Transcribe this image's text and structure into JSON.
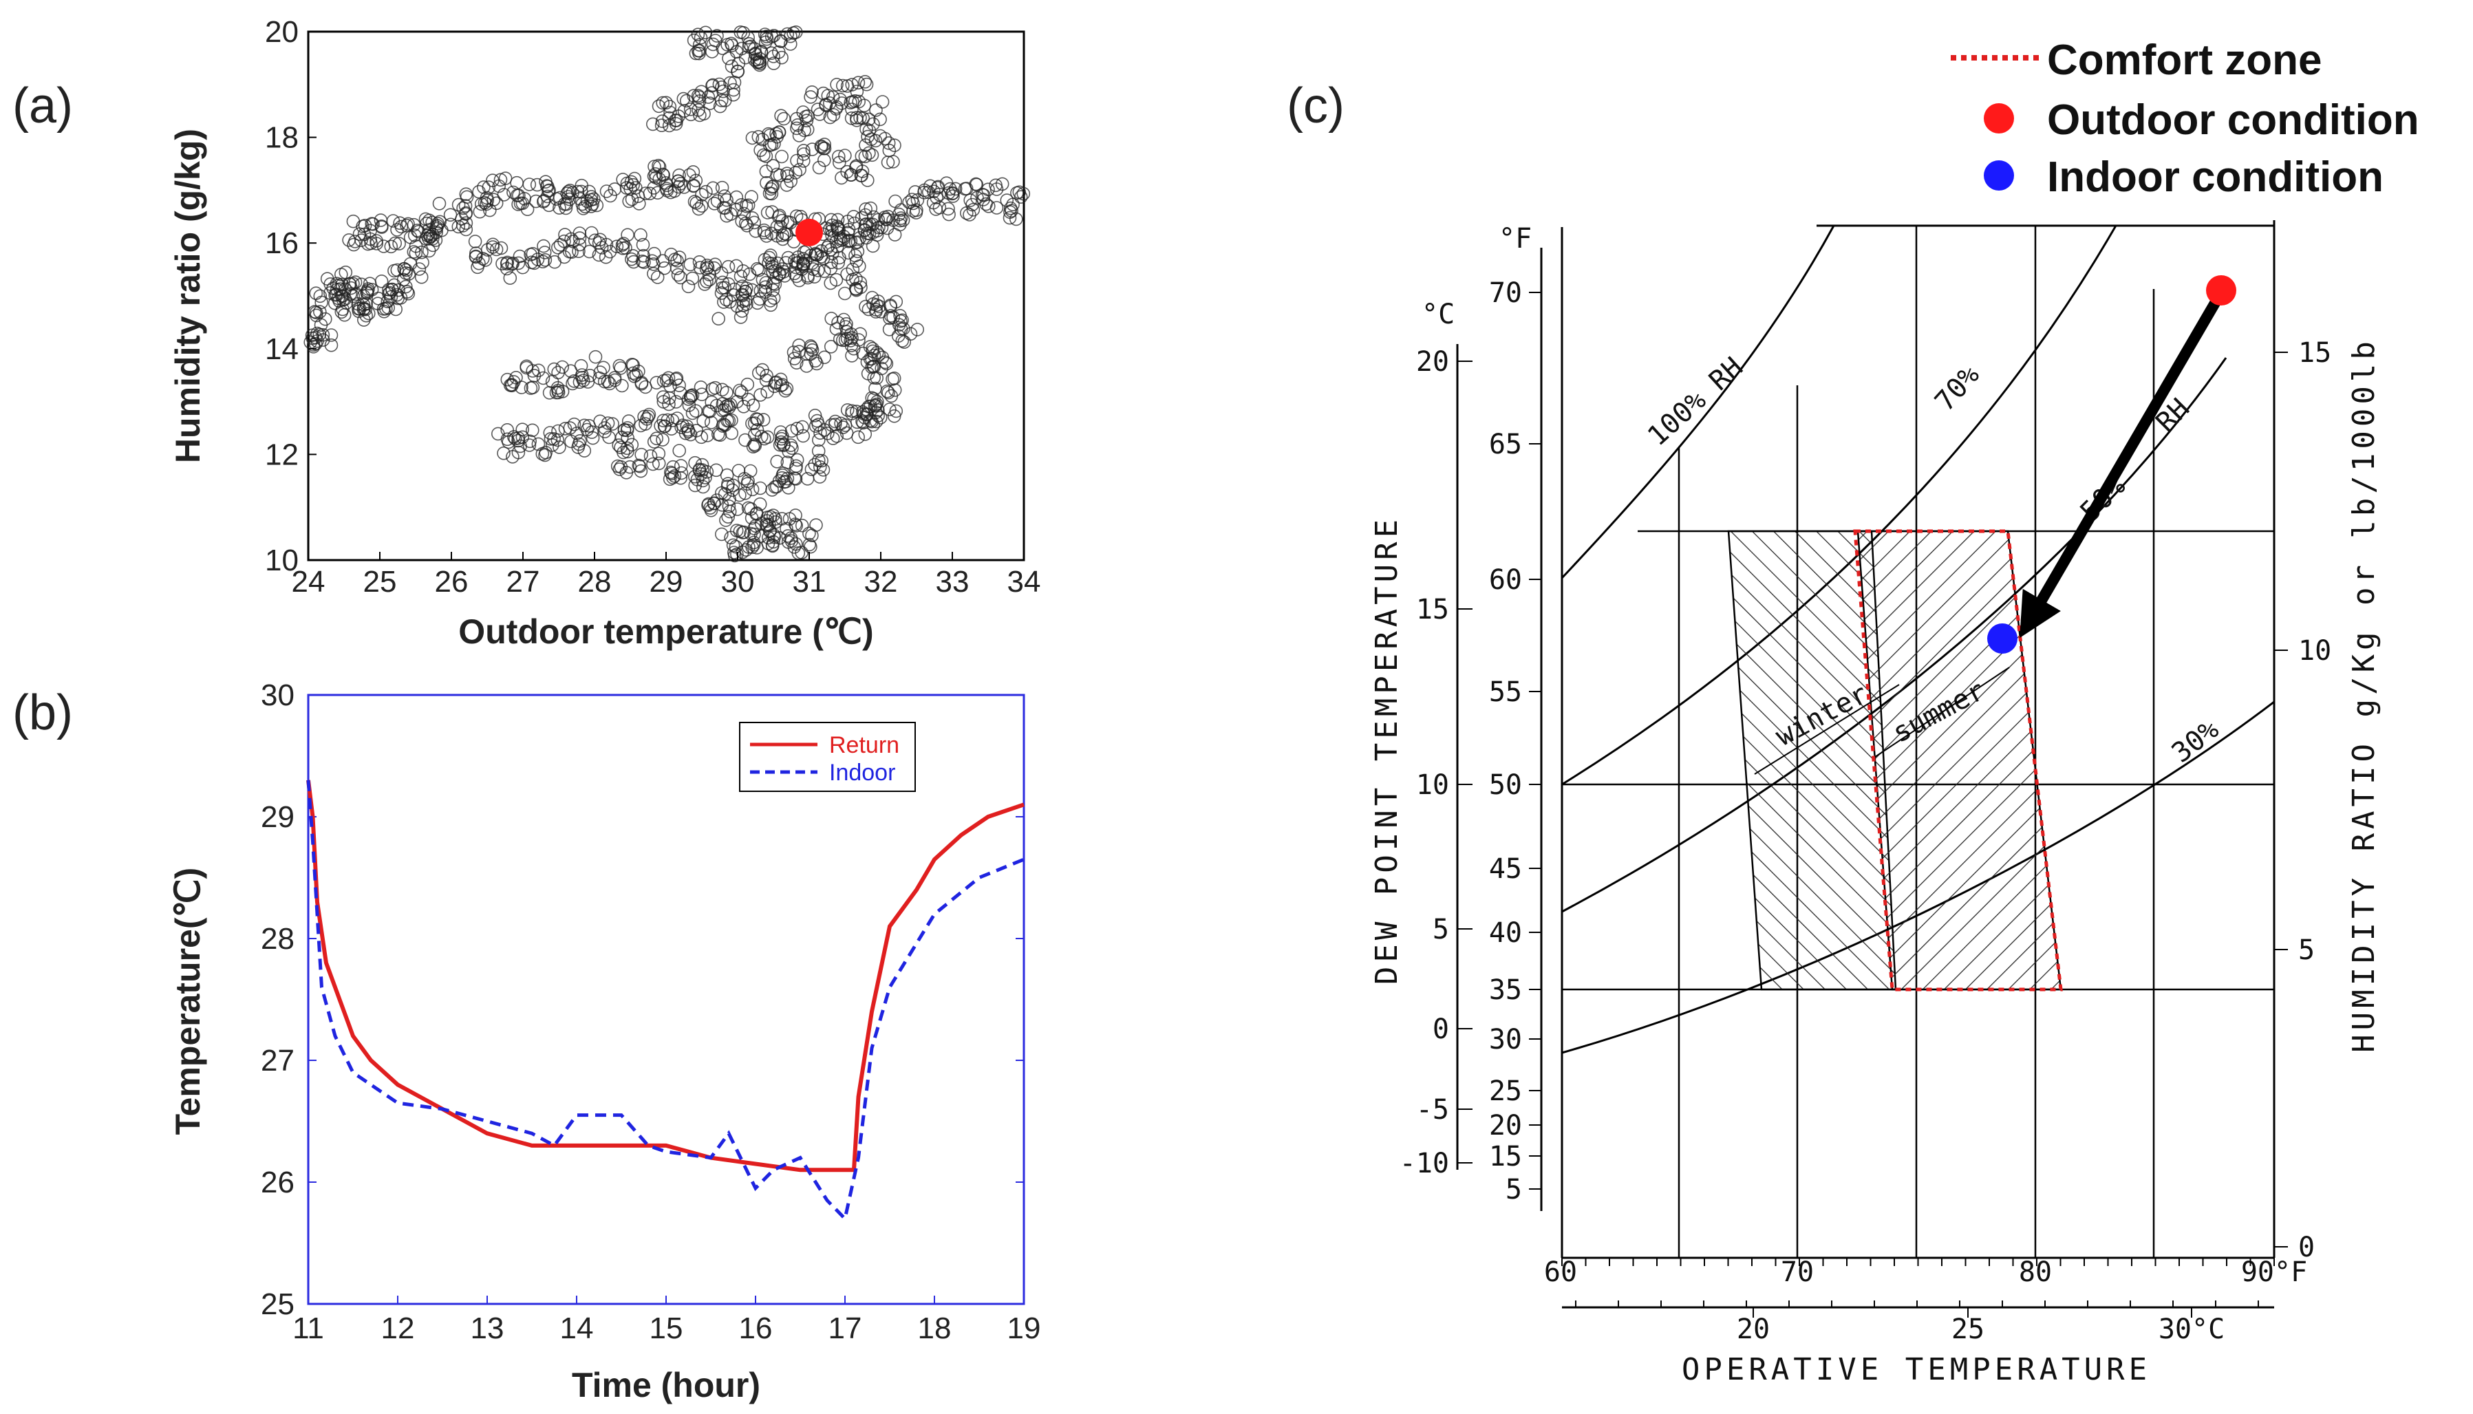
{
  "chart_data": [
    {
      "panel": "(a)",
      "type": "scatter",
      "xlabel": "Outdoor temperature (℃)",
      "ylabel": "Humidity ratio (g/kg)",
      "xlim": [
        24,
        34
      ],
      "ylim": [
        10,
        20
      ],
      "xticks": [
        24,
        25,
        26,
        27,
        28,
        29,
        30,
        31,
        32,
        33,
        34
      ],
      "yticks": [
        10,
        12,
        14,
        16,
        18,
        20
      ],
      "highlight": {
        "x": 31,
        "y": 16.2,
        "color": "#ff1a1a"
      },
      "clusters": [
        {
          "x": [
            25.6,
            25.4,
            25.2,
            25.0,
            24.8,
            24.6,
            24.4,
            24.3,
            24.1,
            24.0
          ],
          "y": [
            16.1,
            15.6,
            15.1,
            14.9,
            15.0,
            14.8,
            15.2,
            14.9,
            14.3,
            14.0
          ]
        },
        {
          "x": [
            24.7,
            25.1,
            25.6,
            26.0,
            26.4,
            26.8,
            27.2,
            27.6,
            28.0,
            28.4,
            28.8,
            29.2,
            29.6,
            30.0,
            30.4,
            30.8,
            31.2,
            31.6,
            32.0
          ],
          "y": [
            16.2,
            16.2,
            16.3,
            16.5,
            16.8,
            17.0,
            16.9,
            16.8,
            16.9,
            17.0,
            17.2,
            17.1,
            16.9,
            16.6,
            16.4,
            16.3,
            16.2,
            16.3,
            16.4
          ]
        },
        {
          "x": [
            26.5,
            27.0,
            27.5,
            28.0,
            28.5,
            29.0,
            29.5,
            30.0,
            30.5,
            31.0,
            31.5,
            32.0,
            32.3
          ],
          "y": [
            15.8,
            15.6,
            15.9,
            16.0,
            15.9,
            15.6,
            15.4,
            15.3,
            15.5,
            15.6,
            15.3,
            14.8,
            14.4
          ]
        },
        {
          "x": [
            30.4,
            30.8,
            31.2,
            31.6,
            31.8,
            32.0,
            31.6,
            31.0,
            30.6
          ],
          "y": [
            17.8,
            18.3,
            18.6,
            18.8,
            18.4,
            17.8,
            17.4,
            17.6,
            17.2
          ]
        },
        {
          "x": [
            29.6,
            30.0,
            30.4,
            30.6,
            30.1
          ],
          "y": [
            19.8,
            19.9,
            19.6,
            19.8,
            19.5
          ]
        },
        {
          "x": [
            29.0,
            29.4,
            29.8
          ],
          "y": [
            18.4,
            18.6,
            18.8
          ]
        },
        {
          "x": [
            29.9,
            30.3,
            30.7,
            31.1,
            31.5,
            31.9,
            32.3,
            32.7,
            33.1,
            33.5,
            33.9
          ],
          "y": [
            14.8,
            15.1,
            15.4,
            15.7,
            15.9,
            16.2,
            16.6,
            16.9,
            16.8,
            16.9,
            16.7
          ]
        },
        {
          "x": [
            27.0,
            27.5,
            28.0,
            28.5,
            29.0,
            29.5,
            30.0,
            30.5,
            31.0,
            31.5,
            31.8,
            32.0
          ],
          "y": [
            13.5,
            13.4,
            13.6,
            13.5,
            13.2,
            13.0,
            13.1,
            13.4,
            13.9,
            14.3,
            14.0,
            13.6
          ]
        },
        {
          "x": [
            26.8,
            27.3,
            27.8,
            28.3,
            28.8,
            29.3,
            29.8,
            30.3,
            30.8,
            31.3,
            31.8,
            32.0,
            31.6,
            31.0,
            30.5,
            30.0,
            29.5,
            29.0,
            28.5
          ],
          "y": [
            12.2,
            12.2,
            12.3,
            12.4,
            12.5,
            12.6,
            12.6,
            12.4,
            12.3,
            12.5,
            12.8,
            13.0,
            12.6,
            11.8,
            11.6,
            11.5,
            11.6,
            11.8,
            11.9
          ]
        },
        {
          "x": [
            29.8,
            30.2,
            30.6,
            30.9,
            30.4,
            30.0
          ],
          "y": [
            11.0,
            10.8,
            10.6,
            10.4,
            10.5,
            10.3
          ]
        }
      ]
    },
    {
      "panel": "(b)",
      "type": "line",
      "xlabel": "Time (hour)",
      "ylabel": "Temperature(℃)",
      "xlim": [
        11,
        19
      ],
      "ylim": [
        25,
        30
      ],
      "xticks": [
        11,
        12,
        13,
        14,
        15,
        16,
        17,
        18,
        19
      ],
      "yticks": [
        25,
        26,
        27,
        28,
        29,
        30
      ],
      "series": [
        {
          "name": "Return",
          "color": "#e01f1f",
          "dash": "solid",
          "x": [
            11.0,
            11.05,
            11.1,
            11.2,
            11.35,
            11.5,
            11.7,
            12.0,
            12.5,
            13.0,
            13.5,
            14.0,
            14.5,
            15.0,
            15.5,
            16.0,
            16.5,
            17.0,
            17.1,
            17.15,
            17.3,
            17.5,
            17.8,
            18.0,
            18.3,
            18.6,
            19.0
          ],
          "y": [
            29.3,
            29.0,
            28.3,
            27.8,
            27.5,
            27.2,
            27.0,
            26.8,
            26.6,
            26.4,
            26.3,
            26.3,
            26.3,
            26.3,
            26.2,
            26.15,
            26.1,
            26.1,
            26.1,
            26.7,
            27.4,
            28.1,
            28.4,
            28.65,
            28.85,
            29.0,
            29.1
          ]
        },
        {
          "name": "Indoor",
          "color": "#1f24e0",
          "dash": "dashed",
          "x": [
            11.0,
            11.05,
            11.15,
            11.3,
            11.5,
            11.8,
            12.0,
            12.5,
            13.0,
            13.5,
            13.75,
            14.0,
            14.5,
            14.8,
            15.0,
            15.5,
            15.7,
            16.0,
            16.2,
            16.5,
            16.8,
            17.0,
            17.15,
            17.3,
            17.5,
            18.0,
            18.5,
            19.0
          ],
          "y": [
            29.3,
            28.8,
            27.6,
            27.2,
            26.9,
            26.75,
            26.65,
            26.6,
            26.5,
            26.4,
            26.3,
            26.55,
            26.55,
            26.3,
            26.25,
            26.2,
            26.4,
            25.95,
            26.1,
            26.2,
            25.85,
            25.7,
            26.2,
            27.1,
            27.6,
            28.2,
            28.5,
            28.65
          ]
        }
      ]
    },
    {
      "panel": "(c)",
      "type": "psychrometric",
      "xlabel": "OPERATIVE TEMPERATURE",
      "ylabel_left": "DEW POINT TEMPERATURE",
      "ylabel_right": "HUMIDITY RATIO g/Kg or lb/1000lb",
      "x_fahrenheit_ticks": [
        "60",
        "70",
        "80",
        "90°F"
      ],
      "x_celsius_ticks": [
        "20",
        "25",
        "30°C"
      ],
      "left_celsius_ticks": [
        "20",
        "15",
        "10",
        "5",
        "0",
        "-5",
        "-10"
      ],
      "left_celsius_unit": "°C",
      "left_fahrenheit_ticks": [
        "70",
        "65",
        "60",
        "55",
        "50",
        "45",
        "40",
        "35",
        "30",
        "25",
        "20",
        "15",
        "5"
      ],
      "left_fahrenheit_unit": "°F",
      "right_ticks": [
        "15",
        "10",
        "5",
        "0"
      ],
      "rh_labels": [
        "100% RH",
        "70%",
        "50%",
        "RH",
        "30%"
      ],
      "zone_labels": [
        "winter",
        "summer"
      ],
      "outdoor_point": {
        "color": "#ff1a1a"
      },
      "indoor_point": {
        "color": "#1a1aff"
      },
      "legend": [
        {
          "label": "Comfort zone",
          "style": "dotted-line",
          "color": "#e01f1f"
        },
        {
          "label": "Outdoor condition",
          "style": "dot",
          "color": "#ff1a1a"
        },
        {
          "label": "Indoor condition",
          "style": "dot",
          "color": "#1a1aff"
        }
      ]
    }
  ]
}
